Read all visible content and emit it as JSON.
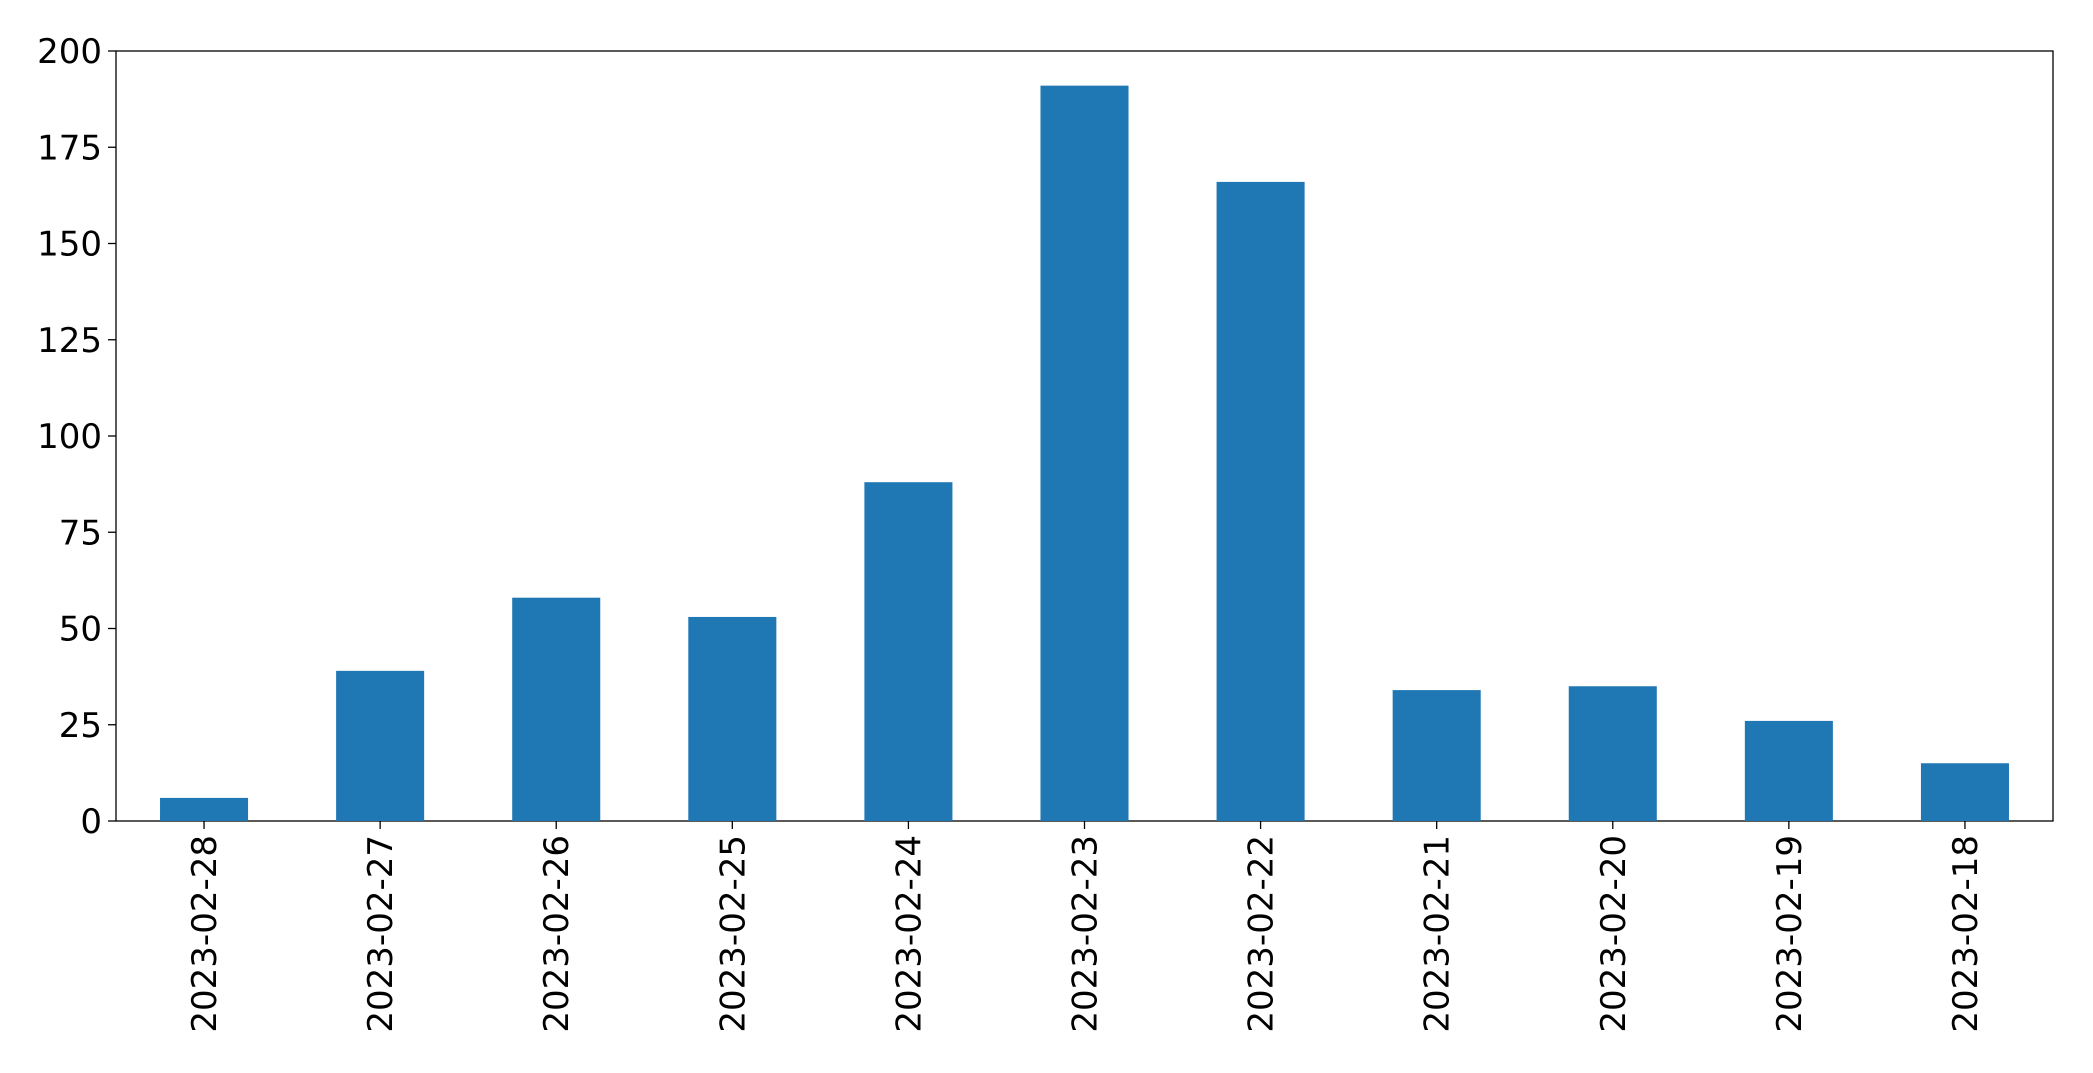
{
  "chart_data": {
    "type": "bar",
    "categories": [
      "2023-02-28",
      "2023-02-27",
      "2023-02-26",
      "2023-02-25",
      "2023-02-24",
      "2023-02-23",
      "2023-02-22",
      "2023-02-21",
      "2023-02-20",
      "2023-02-19",
      "2023-02-18"
    ],
    "values": [
      6,
      39,
      58,
      53,
      88,
      191,
      166,
      34,
      35,
      26,
      15
    ],
    "color": "#1f77b4",
    "ylim": [
      0,
      200
    ],
    "yticks": [
      0,
      25,
      50,
      75,
      100,
      125,
      150,
      175,
      200
    ],
    "grid": false
  }
}
